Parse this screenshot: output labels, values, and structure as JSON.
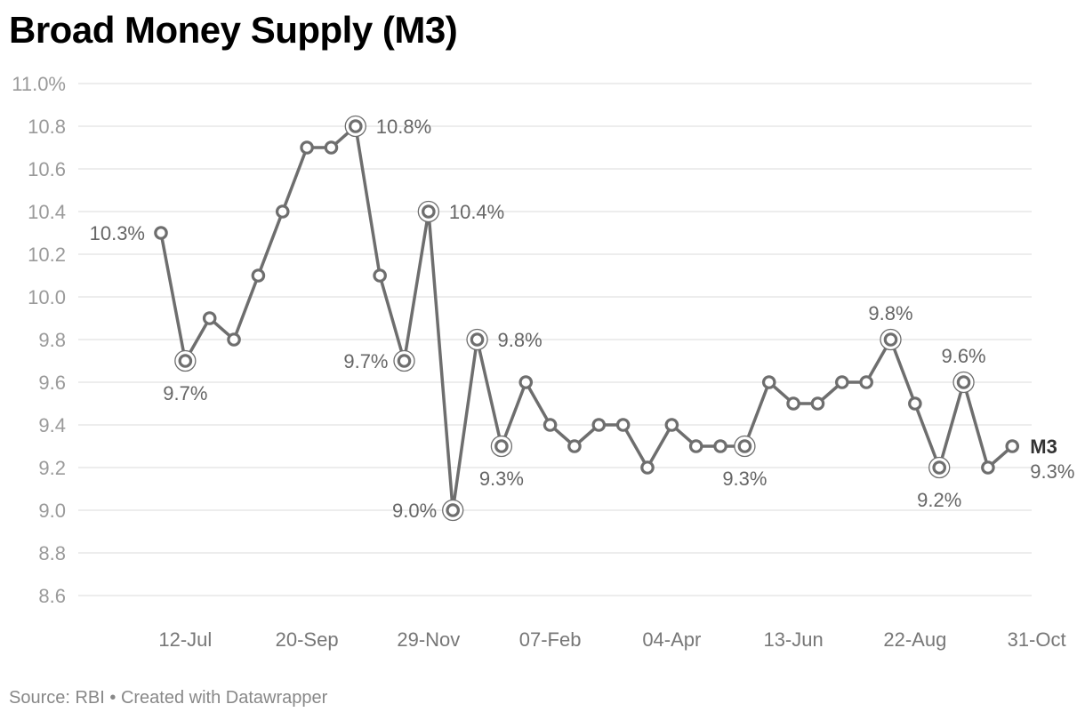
{
  "title": "Broad Money Supply (M3)",
  "footer": {
    "source": "Source: RBI",
    "separator": " • ",
    "credit": "Created with Datawrapper"
  },
  "colors": {
    "line": "#6e6e6e",
    "grid": "#e2e2e2"
  },
  "chart_data": {
    "type": "line",
    "title": "Broad Money Supply (M3)",
    "xlabel": "",
    "ylabel": "",
    "ylim": [
      8.6,
      11.0
    ],
    "y_ticks": [
      {
        "value": 11.0,
        "label": "11.0%"
      },
      {
        "value": 10.8,
        "label": "10.8"
      },
      {
        "value": 10.6,
        "label": "10.6"
      },
      {
        "value": 10.4,
        "label": "10.4"
      },
      {
        "value": 10.2,
        "label": "10.2"
      },
      {
        "value": 10.0,
        "label": "10.0"
      },
      {
        "value": 9.8,
        "label": "9.8"
      },
      {
        "value": 9.6,
        "label": "9.6"
      },
      {
        "value": 9.4,
        "label": "9.4"
      },
      {
        "value": 9.2,
        "label": "9.2"
      },
      {
        "value": 9.0,
        "label": "9.0"
      },
      {
        "value": 8.8,
        "label": "8.8"
      },
      {
        "value": 8.6,
        "label": "8.6"
      }
    ],
    "x_ticks": [
      {
        "index": 1,
        "label": "12-Jul"
      },
      {
        "index": 6,
        "label": "20-Sep"
      },
      {
        "index": 11,
        "label": "29-Nov"
      },
      {
        "index": 16,
        "label": "07-Feb"
      },
      {
        "index": 21,
        "label": "04-Apr"
      },
      {
        "index": 26,
        "label": "13-Jun"
      },
      {
        "index": 31,
        "label": "22-Aug"
      },
      {
        "index": 36,
        "label": "31-Oct"
      }
    ],
    "grid": true,
    "series": [
      {
        "name": "M3",
        "end_label": "M3",
        "end_value_label": "9.3%",
        "values": [
          10.3,
          9.7,
          9.9,
          9.8,
          10.1,
          10.4,
          10.7,
          10.7,
          10.8,
          10.1,
          9.7,
          10.4,
          9.0,
          9.8,
          9.3,
          9.6,
          9.4,
          9.3,
          9.4,
          9.4,
          9.2,
          9.4,
          9.3,
          9.3,
          9.3,
          9.6,
          9.5,
          9.5,
          9.6,
          9.6,
          9.8,
          9.5,
          9.2,
          9.6,
          9.2,
          9.3
        ]
      }
    ],
    "highlighted_indices": [
      1,
      8,
      10,
      11,
      12,
      13,
      14,
      24,
      30,
      32,
      33
    ],
    "annotations": [
      {
        "index": 0,
        "text": "10.3%",
        "position": "left"
      },
      {
        "index": 1,
        "text": "9.7%",
        "position": "below"
      },
      {
        "index": 8,
        "text": "10.8%",
        "position": "right"
      },
      {
        "index": 10,
        "text": "9.7%",
        "position": "left"
      },
      {
        "index": 11,
        "text": "10.4%",
        "position": "right"
      },
      {
        "index": 12,
        "text": "9.0%",
        "position": "left"
      },
      {
        "index": 13,
        "text": "9.8%",
        "position": "right"
      },
      {
        "index": 14,
        "text": "9.3%",
        "position": "below"
      },
      {
        "index": 24,
        "text": "9.3%",
        "position": "below"
      },
      {
        "index": 30,
        "text": "9.8%",
        "position": "above"
      },
      {
        "index": 32,
        "text": "9.2%",
        "position": "below"
      },
      {
        "index": 33,
        "text": "9.6%",
        "position": "above"
      }
    ]
  }
}
